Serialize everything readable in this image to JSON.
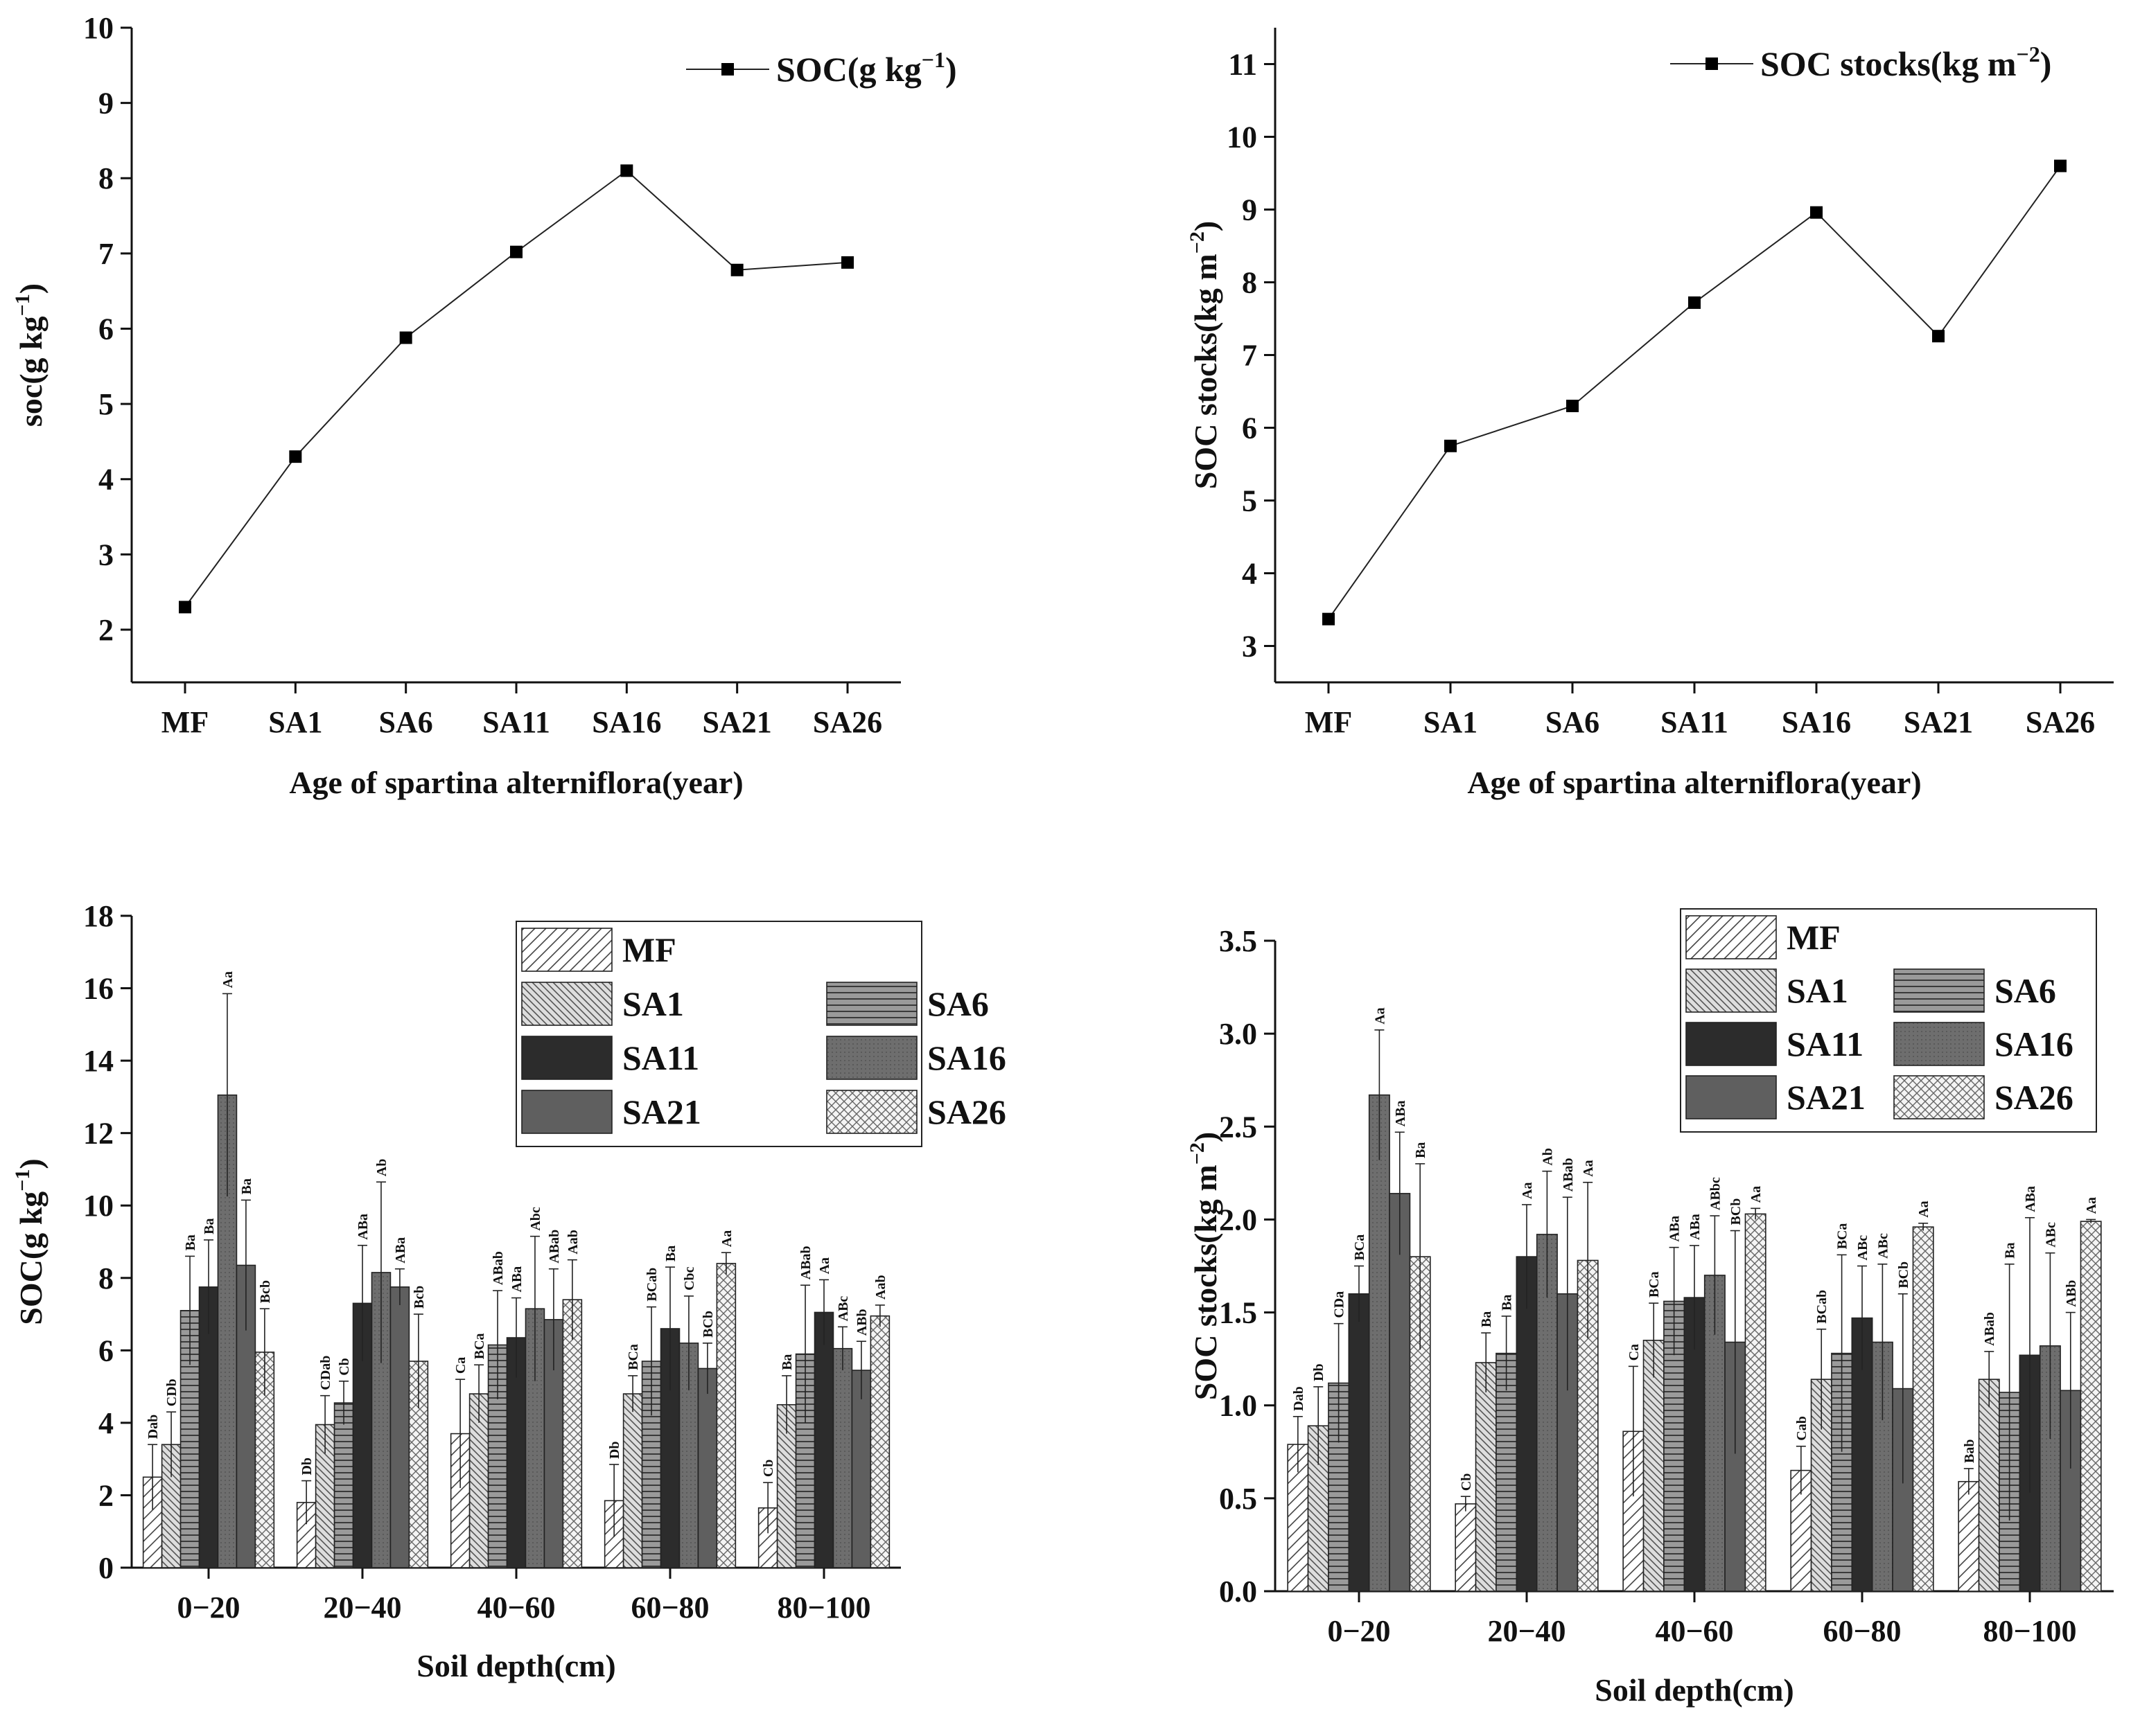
{
  "chart_data": [
    {
      "type": "line",
      "title": "",
      "xlabel": "Age of spartina alterniflora(year)",
      "ylabel_main": "soc(g kg",
      "ylabel_sup": "−1",
      "ylabel_close": ")",
      "categories": [
        "MF",
        "SA1",
        "SA6",
        "SA11",
        "SA16",
        "SA21",
        "SA26"
      ],
      "series": [
        {
          "name": "SOC(g kg",
          "name_sup": "−1",
          "name_close": ")",
          "values": [
            2.3,
            4.3,
            5.88,
            7.02,
            8.1,
            6.78,
            6.88
          ]
        }
      ],
      "ylim": [
        1.3,
        10
      ],
      "yticks": [
        2,
        3,
        4,
        5,
        6,
        7,
        8,
        9,
        10
      ],
      "legend": "top-right"
    },
    {
      "type": "line",
      "title": "",
      "xlabel": "Age of spartina alterniflora(year)",
      "ylabel_main": "SOC stocks(kg m",
      "ylabel_sup": "−2",
      "ylabel_close": ")",
      "categories": [
        "MF",
        "SA1",
        "SA6",
        "SA11",
        "SA16",
        "SA21",
        "SA26"
      ],
      "series": [
        {
          "name": "SOC stocks(kg m",
          "name_sup": "−2",
          "name_close": ")",
          "values": [
            3.37,
            5.75,
            6.3,
            7.72,
            8.96,
            7.26,
            9.6
          ]
        }
      ],
      "ylim": [
        2.5,
        11.5
      ],
      "yticks": [
        3,
        4,
        5,
        6,
        7,
        8,
        9,
        10,
        11
      ],
      "legend": "top-right"
    },
    {
      "type": "bar",
      "title": "",
      "xlabel": "Soil depth(cm)",
      "ylabel_main": "SOC(g kg",
      "ylabel_sup": "−1",
      "ylabel_close": ")",
      "categories": [
        "0−20",
        "20−40",
        "40−60",
        "60−80",
        "80−100"
      ],
      "series": [
        {
          "name": "MF",
          "pattern": "MF",
          "values": [
            2.5,
            1.8,
            3.7,
            1.85,
            1.65
          ],
          "err": [
            0.9,
            0.6,
            1.5,
            1.0,
            0.7
          ],
          "labels": [
            "Dab",
            "Db",
            "Ca",
            "Db",
            "Cb"
          ]
        },
        {
          "name": "SA1",
          "pattern": "SA1",
          "values": [
            3.4,
            3.95,
            4.8,
            4.8,
            4.5
          ],
          "err": [
            0.9,
            0.8,
            0.8,
            0.5,
            0.8
          ],
          "labels": [
            "CDb",
            "CDab",
            "BCa",
            "BCa",
            "Ba"
          ]
        },
        {
          "name": "SA6",
          "pattern": "SA6",
          "values": [
            7.1,
            4.55,
            6.15,
            5.7,
            5.9
          ],
          "err": [
            1.5,
            0.6,
            1.5,
            1.5,
            1.9
          ],
          "labels": [
            "Ba",
            "Cb",
            "ABab",
            "BCab",
            "ABab"
          ]
        },
        {
          "name": "SA11",
          "pattern": "SA11",
          "values": [
            7.75,
            7.3,
            6.35,
            6.6,
            7.05
          ],
          "err": [
            1.3,
            1.6,
            1.1,
            1.7,
            0.9
          ],
          "labels": [
            "Ba",
            "ABa",
            "ABa",
            "Ba",
            "Aa"
          ]
        },
        {
          "name": "SA16",
          "pattern": "SA16",
          "values": [
            13.05,
            8.15,
            7.15,
            6.2,
            6.05
          ],
          "err": [
            2.8,
            2.5,
            2.0,
            1.3,
            0.6
          ],
          "labels": [
            "Aa",
            "Ab",
            "Abc",
            "Cbc",
            "ABc"
          ]
        },
        {
          "name": "SA21",
          "pattern": "SA21",
          "values": [
            8.35,
            7.75,
            6.85,
            5.5,
            5.45
          ],
          "err": [
            1.8,
            0.5,
            1.4,
            0.7,
            0.8
          ],
          "labels": [
            "Ba",
            "ABa",
            "ABab",
            "BCb",
            "ABb"
          ]
        },
        {
          "name": "SA26",
          "pattern": "SA26",
          "values": [
            5.95,
            5.7,
            7.4,
            8.4,
            6.95
          ],
          "err": [
            1.2,
            1.3,
            1.1,
            0.3,
            0.3
          ],
          "labels": [
            "Bcb",
            "Bcb",
            "Aab",
            "Aa",
            "Aab"
          ]
        }
      ],
      "ylim": [
        0,
        18
      ],
      "yticks": [
        0,
        2,
        4,
        6,
        8,
        10,
        12,
        14,
        16,
        18
      ],
      "legend": "top-right"
    },
    {
      "type": "bar",
      "title": "",
      "xlabel": "Soil depth(cm)",
      "ylabel_main": "SOC stocks(kg m",
      "ylabel_sup": "−2",
      "ylabel_close": ")",
      "categories": [
        "0−20",
        "20−40",
        "40−60",
        "60−80",
        "80−100"
      ],
      "series": [
        {
          "name": "MF",
          "pattern": "MF",
          "values": [
            0.79,
            0.47,
            0.86,
            0.65,
            0.59
          ],
          "err": [
            0.15,
            0.04,
            0.35,
            0.13,
            0.07
          ],
          "labels": [
            "Dab",
            "Cb",
            "Ca",
            "Cab",
            "Bab"
          ]
        },
        {
          "name": "SA1",
          "pattern": "SA1",
          "values": [
            0.89,
            1.23,
            1.35,
            1.14,
            1.14
          ],
          "err": [
            0.21,
            0.16,
            0.2,
            0.27,
            0.15
          ],
          "labels": [
            "Db",
            "Ba",
            "BCa",
            "BCab",
            "ABab"
          ]
        },
        {
          "name": "SA6",
          "pattern": "SA6",
          "values": [
            1.12,
            1.28,
            1.56,
            1.28,
            1.07
          ],
          "err": [
            0.32,
            0.2,
            0.29,
            0.53,
            0.69
          ],
          "labels": [
            "CDa",
            "Ba",
            "ABa",
            "BCa",
            "Ba"
          ]
        },
        {
          "name": "SA11",
          "pattern": "SA11",
          "values": [
            1.6,
            1.8,
            1.58,
            1.47,
            1.27
          ],
          "err": [
            0.15,
            0.28,
            0.28,
            0.28,
            0.74
          ],
          "labels": [
            "BCa",
            "Aa",
            "ABa",
            "ABc",
            "ABa"
          ]
        },
        {
          "name": "SA16",
          "pattern": "SA16",
          "values": [
            2.67,
            1.92,
            1.7,
            1.34,
            1.32
          ],
          "err": [
            0.35,
            0.34,
            0.32,
            0.42,
            0.5
          ],
          "labels": [
            "Aa",
            "Ab",
            "ABbc",
            "ABc",
            "ABc"
          ]
        },
        {
          "name": "SA21",
          "pattern": "SA21",
          "values": [
            2.14,
            1.6,
            1.34,
            1.09,
            1.08
          ],
          "err": [
            0.33,
            0.52,
            0.6,
            0.51,
            0.42
          ],
          "labels": [
            "ABa",
            "ABab",
            "BCb",
            "BCb",
            "ABb"
          ]
        },
        {
          "name": "SA26",
          "pattern": "SA26",
          "values": [
            1.8,
            1.78,
            2.03,
            1.96,
            1.99
          ],
          "err": [
            0.5,
            0.42,
            0.03,
            0.02,
            0.01
          ],
          "labels": [
            "Ba",
            "Aa",
            "Aa",
            "Aa",
            "Aa"
          ]
        }
      ],
      "ylim": [
        0,
        3.5
      ],
      "yticks": [
        0.0,
        0.5,
        1.0,
        1.5,
        2.0,
        2.5,
        3.0,
        3.5
      ],
      "legend": "top-right"
    }
  ]
}
